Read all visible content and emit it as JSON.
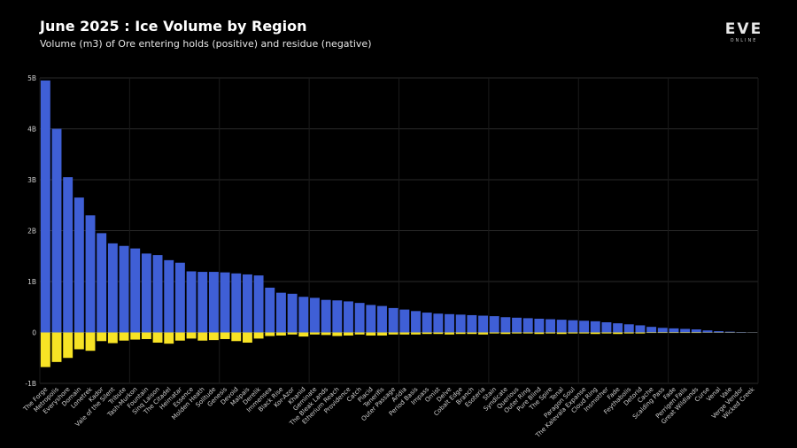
{
  "header": {
    "title": "June 2025 : Ice Volume by Region",
    "subtitle": "Volume (m3) of Ore entering holds (positive) and residue (negative)"
  },
  "logo": {
    "text": "EVE",
    "subtext": "ONLINE"
  },
  "chart_data": {
    "type": "bar",
    "title": "June 2025 : Ice Volume by Region",
    "subtitle": "Volume (m3) of Ore entering holds (positive) and residue (negative)",
    "ylim": [
      -1000000000,
      5000000000
    ],
    "yticks": [
      {
        "value": 5000000000,
        "label": "5B"
      },
      {
        "value": 4000000000,
        "label": "4B"
      },
      {
        "value": 3000000000,
        "label": "3B"
      },
      {
        "value": 2000000000,
        "label": "2B"
      },
      {
        "value": 1000000000,
        "label": "1B"
      },
      {
        "value": 0,
        "label": "0"
      },
      {
        "value": -1000000000,
        "label": "-1B"
      }
    ],
    "grid": true,
    "colors": {
      "positive": "#3f5fd6",
      "negative": "#f7e325",
      "grid": "#2a2a2a",
      "background": "#000000"
    },
    "categories": [
      "The Forge",
      "Metropolis",
      "Everyshore",
      "Domain",
      "Lonetrek",
      "Kador",
      "Vale of the Silent",
      "Tribute",
      "Tash-Murkon",
      "Fountain",
      "Sinq Laison",
      "The Citadel",
      "Heimatar",
      "Essence",
      "Molden Heath",
      "Solitude",
      "Genesis",
      "Devoid",
      "Malpais",
      "Derelik",
      "Immensea",
      "Black Rise",
      "Kor-Azor",
      "Khanid",
      "Geminate",
      "The Bleak Lands",
      "Etherium Reach",
      "Providence",
      "Catch",
      "Placid",
      "Tenerifis",
      "Outer Passage",
      "Aridia",
      "Period Basis",
      "Impass",
      "Omist",
      "Delve",
      "Cobalt Edge",
      "Branch",
      "Esoteria",
      "Stain",
      "Syndicate",
      "Querious",
      "Outer Ring",
      "Pure Blind",
      "The Spire",
      "Tenal",
      "Paragon Soul",
      "The Kalevala Expanse",
      "Cloud Ring",
      "Insmother",
      "Fade",
      "Feythabolis",
      "Detorid",
      "Cache",
      "Scalding Pass",
      "Fade ",
      "Perrigen Falls",
      "Great Wildlands",
      "Curse",
      "Venal",
      "Vale",
      "Verge Vendor",
      "Wicked Creek"
    ],
    "series": [
      {
        "values": [
          4950000000,
          4000000000,
          3050000000,
          2650000000,
          2300000000,
          1950000000,
          1750000000,
          1700000000,
          1650000000,
          1550000000,
          1520000000,
          1420000000,
          1370000000,
          1200000000,
          1190000000,
          1190000000,
          1180000000,
          1160000000,
          1140000000,
          1120000000,
          880000000,
          780000000,
          760000000,
          700000000,
          680000000,
          640000000,
          630000000,
          610000000,
          580000000,
          540000000,
          520000000,
          480000000,
          450000000,
          420000000,
          390000000,
          370000000,
          360000000,
          350000000,
          340000000,
          330000000,
          320000000,
          300000000,
          290000000,
          280000000,
          270000000,
          260000000,
          250000000,
          240000000,
          230000000,
          220000000,
          200000000,
          180000000,
          160000000,
          140000000,
          110000000,
          90000000,
          80000000,
          70000000,
          60000000,
          40000000,
          25000000,
          15000000,
          8000000,
          4000000
        ]
      },
      {
        "values": [
          -680000000,
          -580000000,
          -500000000,
          -330000000,
          -360000000,
          -170000000,
          -210000000,
          -160000000,
          -140000000,
          -130000000,
          -200000000,
          -220000000,
          -160000000,
          -120000000,
          -160000000,
          -150000000,
          -130000000,
          -170000000,
          -200000000,
          -120000000,
          -70000000,
          -60000000,
          -40000000,
          -80000000,
          -40000000,
          -50000000,
          -70000000,
          -60000000,
          -40000000,
          -60000000,
          -60000000,
          -40000000,
          -40000000,
          -40000000,
          -30000000,
          -30000000,
          -40000000,
          -30000000,
          -30000000,
          -40000000,
          -20000000,
          -30000000,
          -20000000,
          -20000000,
          -30000000,
          -20000000,
          -30000000,
          -20000000,
          -20000000,
          -30000000,
          -20000000,
          -30000000,
          -20000000,
          -20000000,
          -10000000,
          -10000000,
          -10000000,
          -10000000,
          -10000000,
          -5000000,
          -5000000,
          -5000000,
          -3000000,
          -2000000
        ]
      }
    ]
  }
}
